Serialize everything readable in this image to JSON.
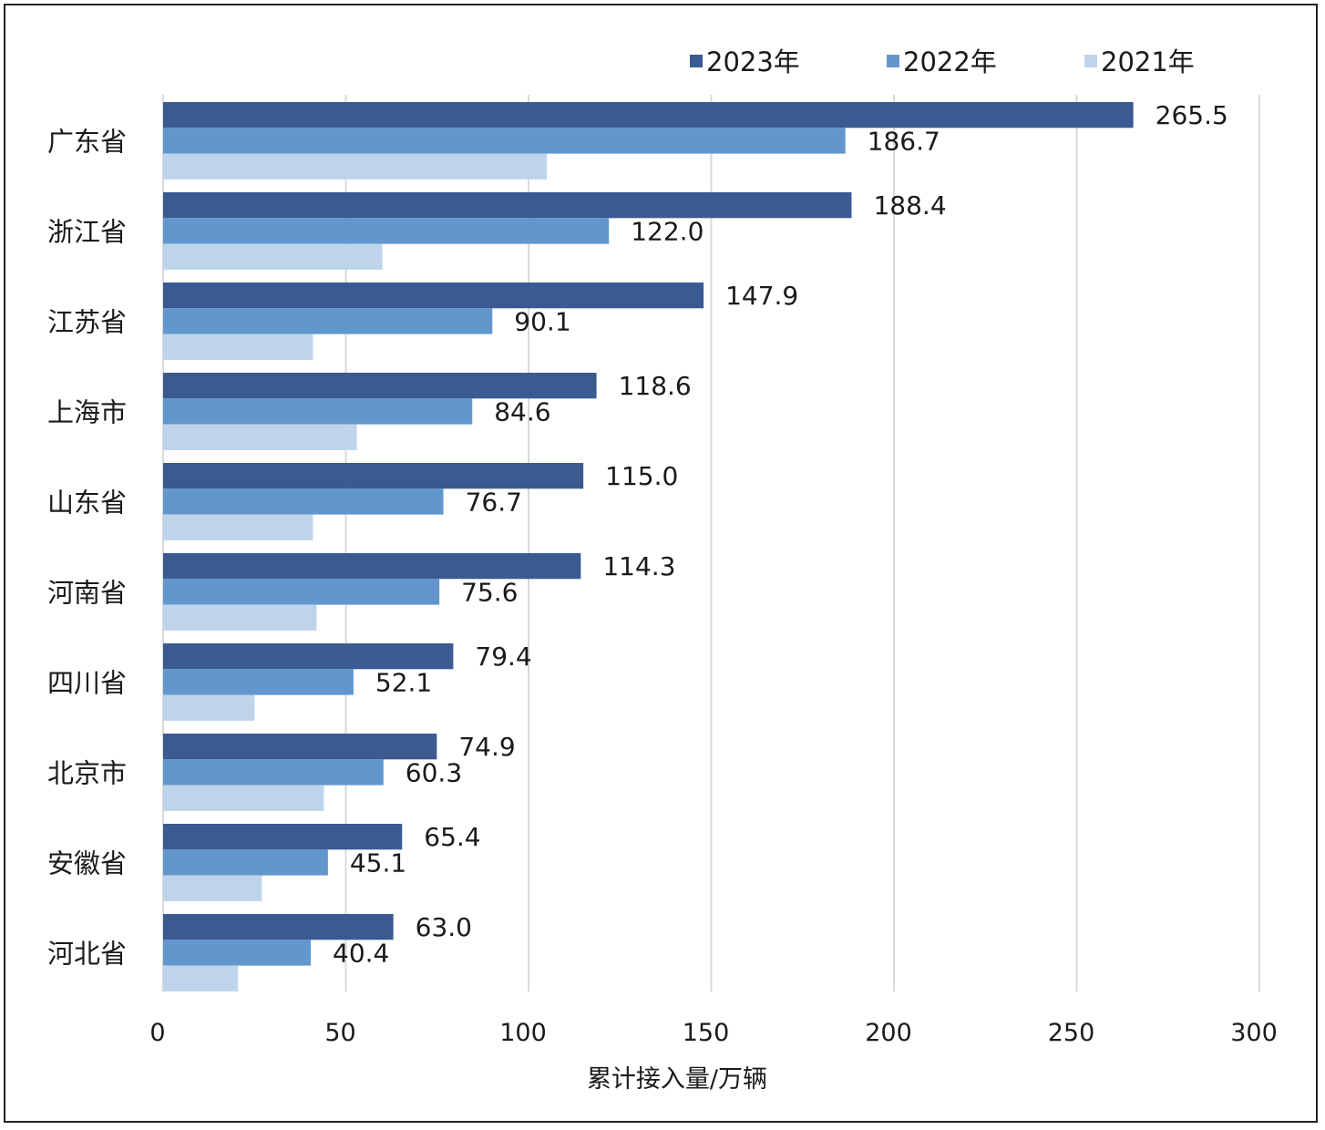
{
  "chart_data": {
    "type": "bar",
    "orientation": "horizontal",
    "xlabel": "累计接入量/万辆",
    "ylabel": "",
    "xlim": [
      0,
      300
    ],
    "xticks": [
      0,
      50,
      100,
      150,
      200,
      250,
      300
    ],
    "grid": "vertical",
    "legend_position": "top-right",
    "categories": [
      "广东省",
      "浙江省",
      "江苏省",
      "上海市",
      "山东省",
      "河南省",
      "四川省",
      "北京市",
      "安徽省",
      "河北省"
    ],
    "series": [
      {
        "name": "2023年",
        "color": "#3b5a91",
        "values": [
          265.5,
          188.4,
          147.9,
          118.6,
          115.0,
          114.3,
          79.4,
          74.9,
          65.4,
          63.0
        ],
        "labels": [
          "265.5",
          "188.4",
          "147.9",
          "118.6",
          "115.0",
          "114.3",
          "79.4",
          "74.9",
          "65.4",
          "63.0"
        ]
      },
      {
        "name": "2022年",
        "color": "#6197cc",
        "values": [
          186.7,
          122.0,
          90.1,
          84.6,
          76.7,
          75.6,
          52.1,
          60.3,
          45.1,
          40.4
        ],
        "labels": [
          "186.7",
          "122.0",
          "90.1",
          "84.6",
          "76.7",
          "75.6",
          "52.1",
          "60.3",
          "45.1",
          "40.4"
        ]
      },
      {
        "name": "2021年",
        "color": "#bed4ea",
        "values": [
          105,
          60,
          41,
          53,
          41,
          42,
          25,
          44,
          27,
          20.5
        ],
        "labels": null
      }
    ]
  }
}
